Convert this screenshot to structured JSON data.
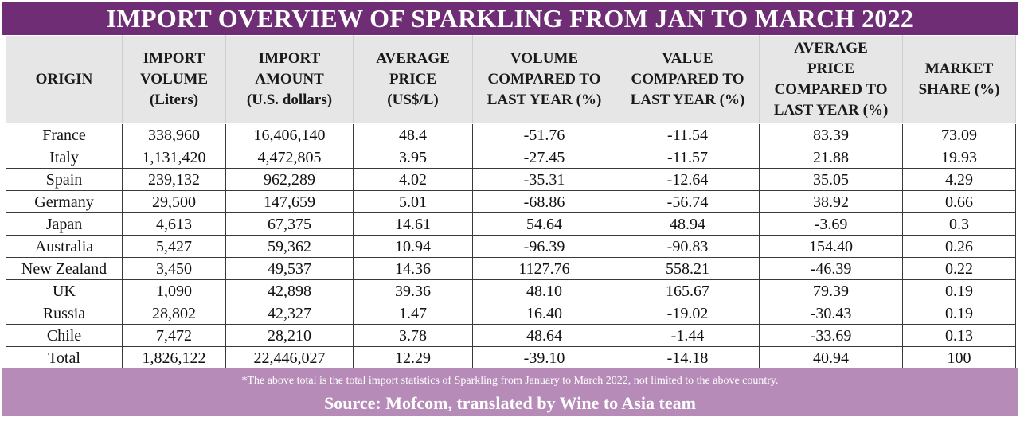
{
  "title": "IMPORT OVERVIEW OF SPARKLING FROM JAN TO MARCH 2022",
  "headers": [
    {
      "lines": [
        "ORIGIN"
      ]
    },
    {
      "lines": [
        "IMPORT",
        "VOLUME",
        "(Liters)"
      ]
    },
    {
      "lines": [
        "IMPORT",
        "AMOUNT",
        "(U.S. dollars)"
      ]
    },
    {
      "lines": [
        "AVERAGE",
        "PRICE",
        "(US$/L)"
      ]
    },
    {
      "lines": [
        "VOLUME",
        "COMPARED TO",
        "LAST YEAR (%)"
      ]
    },
    {
      "lines": [
        "VALUE",
        "COMPARED TO",
        "LAST YEAR (%)"
      ]
    },
    {
      "lines": [
        "AVERAGE",
        "PRICE",
        "COMPARED TO",
        "LAST YEAR (%)"
      ]
    },
    {
      "lines": [
        "MARKET",
        "SHARE (%)"
      ]
    }
  ],
  "rows": [
    [
      "France",
      "338,960",
      "16,406,140",
      "48.4",
      "-51.76",
      "-11.54",
      "83.39",
      "73.09"
    ],
    [
      "Italy",
      "1,131,420",
      "4,472,805",
      "3.95",
      "-27.45",
      "-11.57",
      "21.88",
      "19.93"
    ],
    [
      "Spain",
      "239,132",
      "962,289",
      "4.02",
      "-35.31",
      "-12.64",
      "35.05",
      "4.29"
    ],
    [
      "Germany",
      "29,500",
      "147,659",
      "5.01",
      "-68.86",
      "-56.74",
      "38.92",
      "0.66"
    ],
    [
      "Japan",
      "4,613",
      "67,375",
      "14.61",
      "54.64",
      "48.94",
      "-3.69",
      "0.3"
    ],
    [
      "Australia",
      "5,427",
      "59,362",
      "10.94",
      "-96.39",
      "-90.83",
      "154.40",
      "0.26"
    ],
    [
      "New Zealand",
      "3,450",
      "49,537",
      "14.36",
      "1127.76",
      "558.21",
      "-46.39",
      "0.22"
    ],
    [
      "UK",
      "1,090",
      "42,898",
      "39.36",
      "48.10",
      "165.67",
      "79.39",
      "0.19"
    ],
    [
      "Russia",
      "28,802",
      "42,327",
      "1.47",
      "16.40",
      "-19.02",
      "-30.43",
      "0.19"
    ],
    [
      "Chile",
      "7,472",
      "28,210",
      "3.78",
      "48.64",
      "-1.44",
      "-33.69",
      "0.13"
    ],
    [
      "Total",
      "1,826,122",
      "22,446,027",
      "12.29",
      "-39.10",
      "-14.18",
      "40.94",
      "100"
    ]
  ],
  "footer": {
    "note": "*The above total is the total import statistics of Sparkling from January to March 2022, not limited to the above country.",
    "source": "Source: Mofcom, translated by Wine to Asia team"
  },
  "colors": {
    "title_bg": "#6e2d74",
    "header_bg": "#e6e6e6",
    "footer_bg": "#b68bb8",
    "text_white": "#ffffff"
  }
}
